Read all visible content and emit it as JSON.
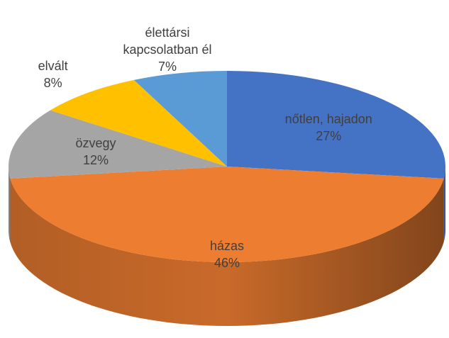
{
  "chart_data": {
    "type": "pie3d",
    "categories": [
      "nőtlen, hajadon",
      "házas",
      "özvegy",
      "elvált",
      "élettársi kapcsolatban él"
    ],
    "values": [
      27,
      46,
      12,
      8,
      7
    ],
    "value_labels": [
      "27%",
      "46%",
      "12%",
      "8%",
      "7%"
    ],
    "colors": [
      "#4472c4",
      "#ed7d31",
      "#a5a5a5",
      "#ffc000",
      "#5b9bd5"
    ]
  }
}
